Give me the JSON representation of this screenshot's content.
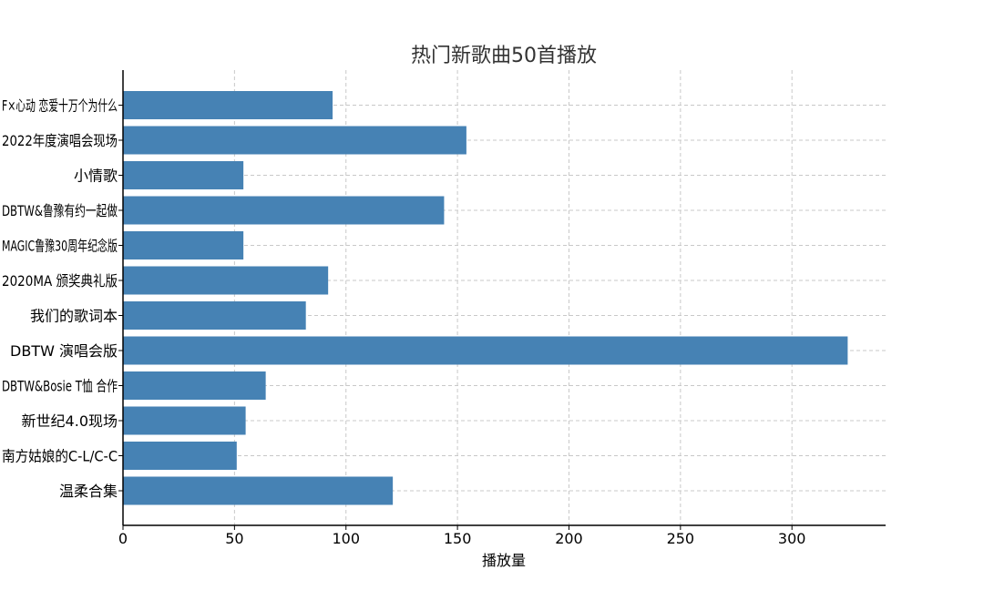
{
  "chart_data": {
    "type": "bar",
    "orientation": "horizontal",
    "title": "热门新歌曲50首播放",
    "xlabel": "播放量",
    "ylabel": "",
    "xlim": [
      0,
      342
    ],
    "xticks": [
      0,
      50,
      100,
      150,
      200,
      250,
      300
    ],
    "grid": true,
    "bar_color": "#4682b4",
    "categories": [
      "F×心动 恋爱十万个为什么",
      "2022年度演唱会现场",
      "小情歌",
      "DBTW&鲁豫有约一起做",
      "MAGIC鲁豫30周年纪念版",
      "2020MA 颁奖典礼版",
      "我们的歌词本",
      "DBTW 演唱会版",
      "DBTW&Bosie T恤 合作",
      "新世纪4.0现场",
      "南方姑娘的C-L/C-C",
      "温柔合集"
    ],
    "values": [
      94,
      154,
      54,
      144,
      54,
      92,
      82,
      325,
      64,
      55,
      51,
      121
    ]
  }
}
